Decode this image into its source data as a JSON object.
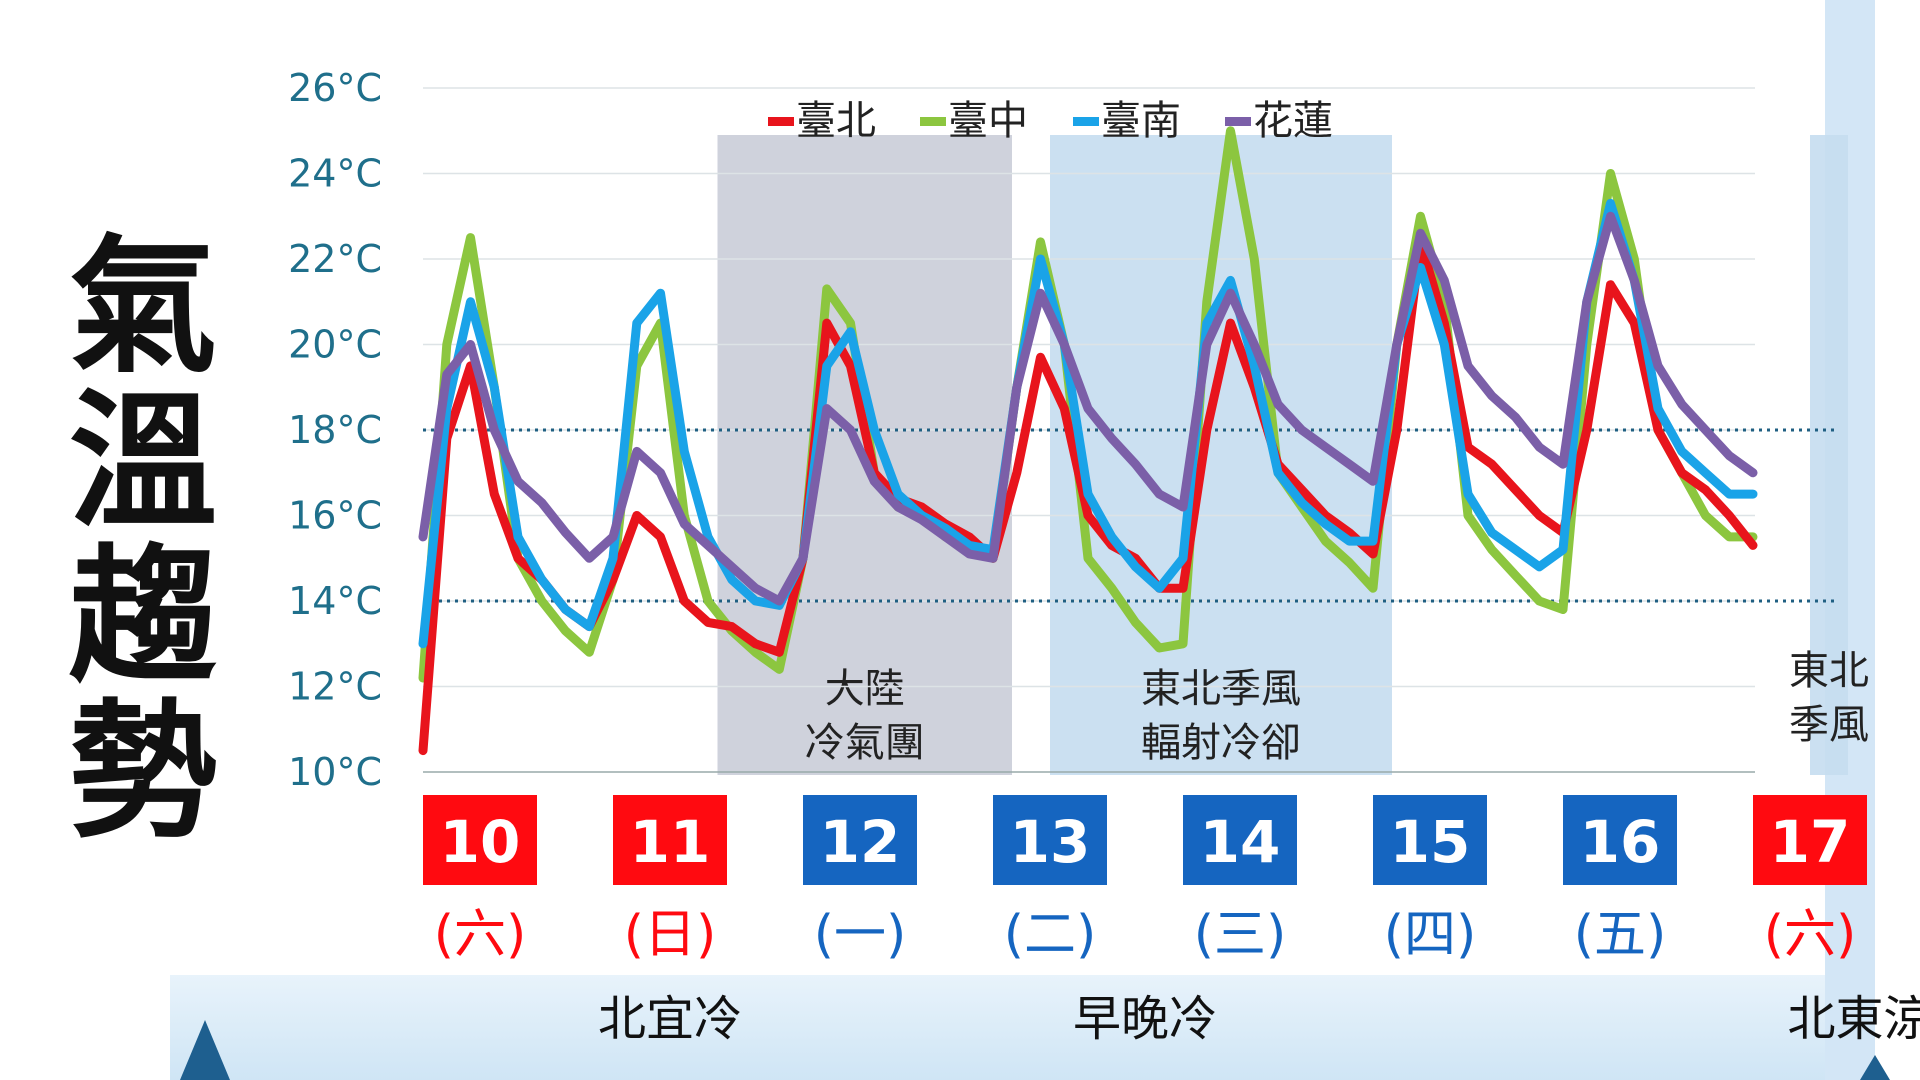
{
  "title_chars": [
    "氣",
    "溫",
    "趨",
    "勢"
  ],
  "colors": {
    "taipei": "#e8141c",
    "taichung": "#8cc63f",
    "tainan": "#1aa3e8",
    "hualien": "#7b5fa8",
    "axis_text": "#1f6f8b",
    "red_box": "#ff0a10",
    "blue_box": "#1565c0",
    "cold_band": "#c7cad6",
    "monsoon_band": "#c5ddf0"
  },
  "chart_data": {
    "type": "line",
    "title": "",
    "xlabel": "",
    "ylabel": "",
    "ylim": [
      10,
      26
    ],
    "yticks": [
      10,
      12,
      14,
      16,
      18,
      20,
      22,
      24,
      26
    ],
    "ytick_labels": [
      "10°C",
      "12°C",
      "14°C",
      "16°C",
      "18°C",
      "20°C",
      "22°C",
      "24°C",
      "26°C"
    ],
    "ytick_unit": "°C",
    "grid": true,
    "reference_lines": [
      18,
      14
    ],
    "legend": {
      "placement": "top-center"
    },
    "x": [
      0,
      0.125,
      0.25,
      0.375,
      0.5,
      0.625,
      0.75,
      0.875,
      1,
      1.125,
      1.25,
      1.375,
      1.5,
      1.625,
      1.75,
      1.875,
      2,
      2.125,
      2.25,
      2.375,
      2.5,
      2.625,
      2.75,
      2.875,
      3,
      3.125,
      3.25,
      3.375,
      3.5,
      3.625,
      3.75,
      3.875,
      4,
      4.125,
      4.25,
      4.375,
      4.5,
      4.625,
      4.75,
      4.875,
      5,
      5.125,
      5.25,
      5.375,
      5.5,
      5.625,
      5.75,
      5.875,
      6,
      6.125,
      6.25,
      6.375,
      6.5,
      6.625,
      6.75,
      6.875,
      7,
      7.125,
      7.25,
      7.375,
      7.5
    ],
    "series": [
      {
        "name": "臺北",
        "color_key": "taipei",
        "values": [
          10.5,
          17.8,
          19.5,
          16.5,
          15.0,
          14.5,
          13.8,
          13.4,
          14.5,
          16.0,
          15.5,
          14.0,
          13.5,
          13.4,
          13.0,
          12.8,
          15.0,
          20.5,
          19.5,
          17.0,
          16.4,
          16.2,
          15.8,
          15.5,
          15.0,
          17.0,
          19.7,
          18.5,
          16.0,
          15.3,
          15.0,
          14.3,
          14.3,
          18.0,
          20.5,
          19.0,
          17.2,
          16.6,
          16.0,
          15.6,
          15.1,
          18.0,
          22.4,
          20.5,
          17.6,
          17.2,
          16.6,
          16.0,
          15.6,
          18.0,
          21.4,
          20.5,
          18.0,
          17.0,
          16.6,
          16.0,
          15.3,
          15.3,
          15.3,
          15.3,
          15.3
        ]
      },
      {
        "name": "臺中",
        "color_key": "taichung",
        "values": [
          12.2,
          20.0,
          22.5,
          19.0,
          15.0,
          14.0,
          13.3,
          12.8,
          14.5,
          19.5,
          20.5,
          16.0,
          14.0,
          13.3,
          12.8,
          12.4,
          15.0,
          21.3,
          20.5,
          17.0,
          16.2,
          16.0,
          15.5,
          15.2,
          15.0,
          19.0,
          22.4,
          20.0,
          15.0,
          14.3,
          13.5,
          12.9,
          13.0,
          21.0,
          25.0,
          22.0,
          17.0,
          16.2,
          15.4,
          14.9,
          14.3,
          20.0,
          23.0,
          21.0,
          16.0,
          15.2,
          14.6,
          14.0,
          13.8,
          20.0,
          24.0,
          22.0,
          18.0,
          17.0,
          16.0,
          15.5,
          15.5,
          15.5,
          15.5,
          15.5,
          15.5
        ]
      },
      {
        "name": "臺南",
        "color_key": "tainan",
        "values": [
          13.0,
          18.5,
          21.0,
          19.0,
          15.5,
          14.5,
          13.8,
          13.4,
          15.0,
          20.5,
          21.2,
          17.5,
          15.5,
          14.5,
          14.0,
          13.9,
          15.0,
          19.5,
          20.3,
          18.0,
          16.5,
          16.0,
          15.7,
          15.3,
          15.2,
          19.0,
          22.0,
          20.0,
          16.5,
          15.5,
          14.8,
          14.3,
          15.0,
          20.5,
          21.5,
          19.5,
          17.0,
          16.3,
          15.8,
          15.4,
          15.4,
          20.0,
          21.8,
          20.0,
          16.5,
          15.6,
          15.2,
          14.8,
          15.2,
          21.0,
          23.3,
          21.5,
          18.5,
          17.5,
          17.0,
          16.5,
          16.5,
          16.5,
          16.5,
          16.5,
          16.5
        ]
      },
      {
        "name": "花蓮",
        "color_key": "hualien",
        "values": [
          15.5,
          19.3,
          20.0,
          18.0,
          16.8,
          16.3,
          15.6,
          15.0,
          15.5,
          17.5,
          17.0,
          15.8,
          15.3,
          14.8,
          14.3,
          14.0,
          15.0,
          18.5,
          18.0,
          16.8,
          16.2,
          15.9,
          15.5,
          15.1,
          15.0,
          19.0,
          21.2,
          20.0,
          18.5,
          17.8,
          17.2,
          16.5,
          16.2,
          20.0,
          21.2,
          20.0,
          18.6,
          18.0,
          17.6,
          17.2,
          16.8,
          20.0,
          22.6,
          21.5,
          19.5,
          18.8,
          18.3,
          17.6,
          17.2,
          21.0,
          23.0,
          21.5,
          19.5,
          18.6,
          18.0,
          17.4,
          17.0,
          17.0,
          17.0,
          17.0,
          17.0
        ]
      }
    ],
    "bands": [
      {
        "label_lines": [
          "大陸",
          "冷氣團"
        ],
        "x_range": [
          1.25,
          2.8
        ],
        "color_key": "cold_band"
      },
      {
        "label_lines": [
          "東北季風",
          "輻射冷卻"
        ],
        "x_range": [
          3.0,
          4.8
        ],
        "color_key": "monsoon_band"
      },
      {
        "label_lines": [
          "東北",
          "季風"
        ],
        "x_range": [
          7.0,
          7.7
        ],
        "color_key": "monsoon_band"
      }
    ],
    "days": [
      {
        "date": "10",
        "weekday": "(六)",
        "weekend": true
      },
      {
        "date": "11",
        "weekday": "(日)",
        "weekend": true
      },
      {
        "date": "12",
        "weekday": "(一)",
        "weekend": false
      },
      {
        "date": "13",
        "weekday": "(二)",
        "weekend": false
      },
      {
        "date": "14",
        "weekday": "(三)",
        "weekend": false
      },
      {
        "date": "15",
        "weekday": "(四)",
        "weekend": false
      },
      {
        "date": "16",
        "weekday": "(五)",
        "weekend": false
      },
      {
        "date": "17",
        "weekday": "(六)",
        "weekend": true
      }
    ],
    "summaries": [
      {
        "text": "北宜冷",
        "day_index": 1
      },
      {
        "text": "早晚冷",
        "day_index": 3.5
      },
      {
        "text": "北東涼",
        "day_index": 7.05
      }
    ]
  }
}
